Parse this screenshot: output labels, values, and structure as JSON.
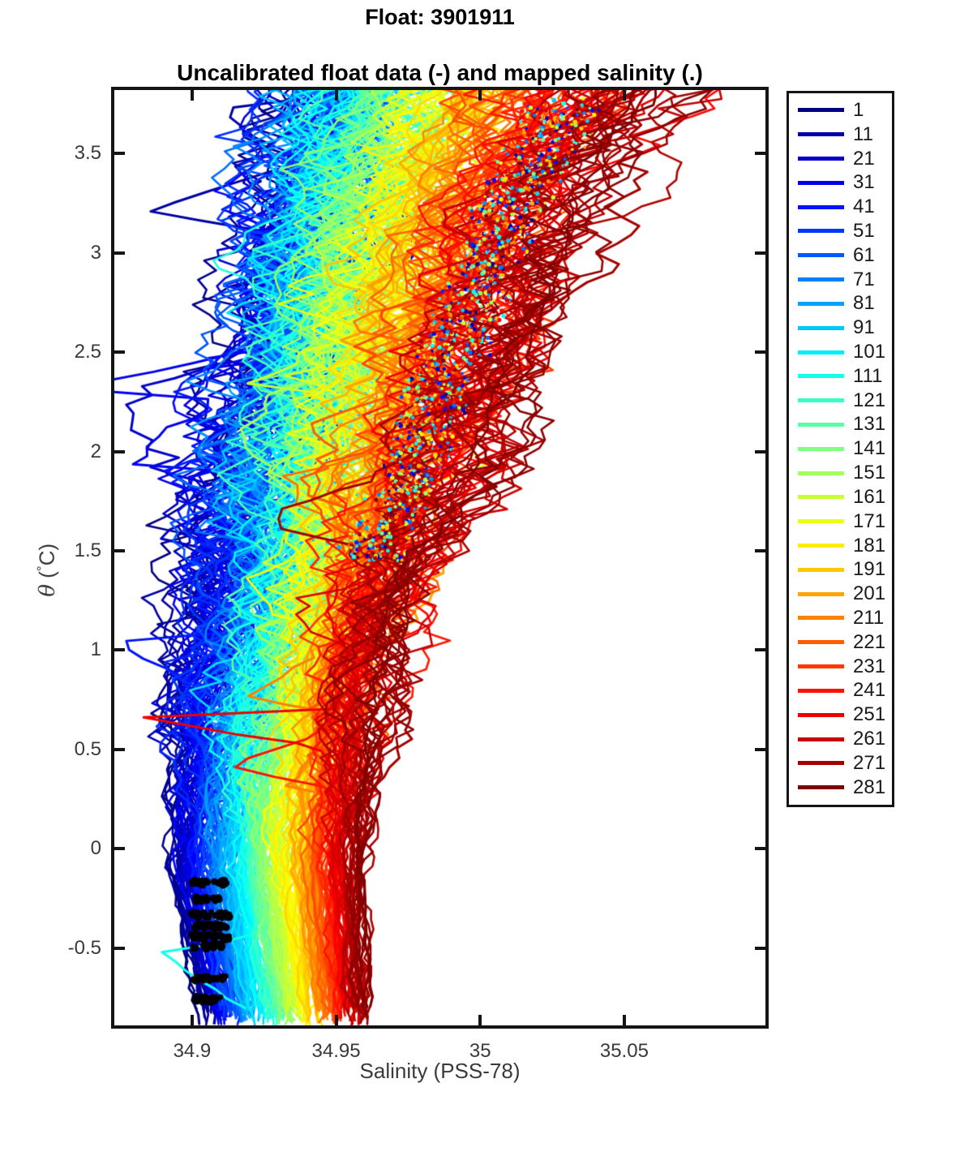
{
  "figure_title": "Float: 3901911",
  "chart_data": {
    "type": "line",
    "title": "Uncalibrated float data (-) and mapped salinity (.)",
    "xlabel": "Salinity (PSS-78)",
    "ylabel": "θ (°C)",
    "ylabel_parts": {
      "symbol": "θ",
      "open": " (",
      "degree": "°",
      "close": "C)"
    },
    "xlim": [
      34.873,
      35.099
    ],
    "ylim": [
      -0.89,
      3.82
    ],
    "grid": false,
    "legend_position": "outside-right",
    "xticks": {
      "values": [
        34.9,
        34.95,
        35.0,
        35.05
      ],
      "labels": [
        "34.9",
        "34.95",
        "35",
        "35.05"
      ]
    },
    "yticks": {
      "values": [
        -0.5,
        0,
        0.5,
        1,
        1.5,
        2,
        2.5,
        3,
        3.5
      ],
      "labels": [
        "-0.5",
        "0",
        "0.5",
        "1",
        "1.5",
        "2",
        "2.5",
        "3",
        "3.5"
      ]
    },
    "total_profiles": 281,
    "theta_levels": [
      -0.85,
      -0.45,
      -0.1,
      0.3,
      0.7,
      1.1,
      1.5,
      1.9,
      2.3,
      2.7,
      3.1,
      3.45,
      3.8
    ],
    "series": [
      {
        "name": "1",
        "color": "#000080",
        "salinity": [
          34.904,
          34.898,
          34.893,
          34.895,
          34.901,
          34.907,
          34.913,
          34.918,
          34.924,
          34.929,
          34.934,
          34.939,
          34.946
        ],
        "extra_points": [
          [
            0.15,
            34.886
          ]
        ]
      },
      {
        "name": "11",
        "color": "#0000A4",
        "salinity": [
          34.906,
          34.9002,
          34.8953,
          34.8973,
          34.9033,
          34.9093,
          34.9153,
          34.9185,
          34.9246,
          34.9291,
          34.9341,
          34.9391,
          34.9461
        ],
        "extra_points": [
          [
            3.2,
            34.893
          ],
          [
            3.72,
            34.902
          ]
        ]
      },
      {
        "name": "21",
        "color": "#0000C8",
        "salinity": [
          34.9081,
          34.9024,
          34.8976,
          34.8996,
          34.9055,
          34.9116,
          34.9176,
          34.9195,
          34.9256,
          34.9295,
          34.9345,
          34.9395,
          34.9466
        ],
        "extra_points": [
          [
            1.35,
            34.902
          ],
          [
            1.55,
            34.884
          ],
          [
            1.75,
            34.91
          ]
        ]
      },
      {
        "name": "31",
        "color": "#0000ED",
        "salinity": [
          34.9101,
          34.9045,
          34.9,
          34.902,
          34.9078,
          34.9139,
          34.92,
          34.9207,
          34.9269,
          34.93,
          34.9351,
          34.9402,
          34.9473
        ],
        "extra_points": [
          [
            1.9,
            34.8755
          ],
          [
            2.08,
            34.897
          ],
          [
            2.3,
            34.879
          ],
          [
            2.5,
            34.924
          ]
        ]
      },
      {
        "name": "41",
        "color": "#0012FF",
        "salinity": [
          34.9121,
          34.9067,
          34.9023,
          34.9043,
          34.91,
          34.9161,
          34.9223,
          34.9222,
          34.9284,
          34.9308,
          34.936,
          34.9412,
          34.9484
        ],
        "extra_points": [
          [
            0.62,
            34.892
          ],
          [
            1.05,
            34.8765
          ],
          [
            1.35,
            34.906
          ]
        ]
      },
      {
        "name": "51",
        "color": "#0037FF",
        "salinity": [
          34.9142,
          34.9089,
          34.9046,
          34.9066,
          34.9123,
          34.9184,
          34.9246,
          34.9238,
          34.9301,
          34.9318,
          34.9371,
          34.9424,
          34.9497
        ]
      },
      {
        "name": "61",
        "color": "#005BFF",
        "salinity": [
          34.9162,
          34.9111,
          34.9069,
          34.9089,
          34.9145,
          34.9207,
          34.9269,
          34.9257,
          34.9321,
          34.9331,
          34.9384,
          34.9439,
          34.9513
        ]
      },
      {
        "name": "71",
        "color": "#0080FF",
        "salinity": [
          34.9183,
          34.9133,
          34.9093,
          34.9113,
          34.9168,
          34.923,
          34.9293,
          34.9276,
          34.9341,
          34.9346,
          34.94,
          34.9456,
          34.9533
        ]
      },
      {
        "name": "81",
        "color": "#00A4FF",
        "salinity": [
          34.9203,
          34.9154,
          34.9116,
          34.9136,
          34.919,
          34.9253,
          34.9316,
          34.9298,
          34.9364,
          34.9363,
          34.9418,
          34.9477,
          34.9555
        ]
      },
      {
        "name": "91",
        "color": "#00C8FF",
        "salinity": [
          34.9223,
          34.9176,
          34.9139,
          34.9159,
          34.9213,
          34.9276,
          34.9339,
          34.932,
          34.9387,
          34.9382,
          34.9439,
          34.9499,
          34.958
        ]
      },
      {
        "name": "101",
        "color": "#00EDFF",
        "salinity": [
          34.9244,
          34.9198,
          34.9162,
          34.9182,
          34.9235,
          34.9299,
          34.9362,
          34.9344,
          34.9413,
          34.9404,
          34.9463,
          34.9525,
          34.9608
        ]
      },
      {
        "name": "111",
        "color": "#12FFED",
        "salinity": [
          34.9264,
          34.922,
          34.9185,
          34.9205,
          34.9258,
          34.9321,
          34.9385,
          34.937,
          34.9439,
          34.9427,
          34.9488,
          34.9554,
          34.9639
        ],
        "extra_points": [
          [
            -0.52,
            34.8885
          ]
        ]
      },
      {
        "name": "121",
        "color": "#37FFC8",
        "salinity": [
          34.9284,
          34.9241,
          34.9209,
          34.9229,
          34.928,
          34.9344,
          34.9409,
          34.9396,
          34.9467,
          34.9453,
          34.9516,
          34.9585,
          34.9673
        ]
      },
      {
        "name": "131",
        "color": "#5BFFA4",
        "salinity": [
          34.9305,
          34.9263,
          34.9232,
          34.9252,
          34.9303,
          34.9367,
          34.9432,
          34.9424,
          34.9496,
          34.9482,
          34.9547,
          34.9619,
          34.971
        ]
      },
      {
        "name": "141",
        "color": "#80FF80",
        "salinity": [
          34.9325,
          34.9285,
          34.9255,
          34.9275,
          34.9325,
          34.939,
          34.9455,
          34.9452,
          34.9526,
          34.9513,
          34.958,
          34.9655,
          34.975
        ]
      },
      {
        "name": "151",
        "color": "#A4FF5B",
        "salinity": [
          34.9345,
          34.9307,
          34.9278,
          34.9298,
          34.9348,
          34.9413,
          34.9478,
          34.9482,
          34.9558,
          34.9545,
          34.9616,
          34.9694,
          34.9793
        ]
      },
      {
        "name": "161",
        "color": "#C8FF37",
        "salinity": [
          34.9366,
          34.9329,
          34.9301,
          34.9321,
          34.937,
          34.9436,
          34.9501,
          34.9513,
          34.959,
          34.9581,
          34.9653,
          34.9736,
          34.9839
        ],
        "extra_points": [
          [
            2.35,
            34.9215
          ]
        ]
      },
      {
        "name": "171",
        "color": "#EDFF12",
        "salinity": [
          34.9386,
          34.935,
          34.9325,
          34.9345,
          34.9393,
          34.9459,
          34.9525,
          34.9544,
          34.9623,
          34.9618,
          34.9694,
          34.9781,
          34.9888
        ]
      },
      {
        "name": "181",
        "color": "#FFED00",
        "salinity": [
          34.9407,
          34.9372,
          34.9348,
          34.9368,
          34.9415,
          34.9481,
          34.9548,
          34.9577,
          34.9658,
          34.9658,
          34.9737,
          34.9828,
          34.9939
        ]
      },
      {
        "name": "191",
        "color": "#FFC800",
        "salinity": [
          34.9427,
          34.9394,
          34.9371,
          34.9391,
          34.9438,
          34.9504,
          34.9571,
          34.9611,
          34.9693,
          34.97,
          34.9782,
          34.9878,
          34.9994
        ]
      },
      {
        "name": "201",
        "color": "#FFA400",
        "salinity": [
          34.9447,
          34.9416,
          34.9394,
          34.9414,
          34.946,
          34.9527,
          34.9594,
          34.9645,
          34.9729,
          34.9744,
          34.983,
          34.9931,
          35.0052
        ]
      },
      {
        "name": "211",
        "color": "#FF8000",
        "salinity": [
          34.9468,
          34.9438,
          34.9417,
          34.9437,
          34.9483,
          34.955,
          34.9617,
          34.968,
          34.9766,
          34.9791,
          34.988,
          34.9986,
          35.0113
        ],
        "extra_points": [
          [
            0.3,
            34.9275
          ],
          [
            0.75,
            34.9235
          ]
        ]
      },
      {
        "name": "221",
        "color": "#FF5B00",
        "salinity": [
          34.9488,
          34.9459,
          34.9441,
          34.9461,
          34.9505,
          34.9573,
          34.9641,
          34.9716,
          34.9804,
          34.9839,
          34.9933,
          35.0044,
          35.0176
        ]
      },
      {
        "name": "231",
        "color": "#FF3700",
        "salinity": [
          34.9508,
          34.9481,
          34.9464,
          34.9484,
          34.9528,
          34.9596,
          34.9664,
          34.9753,
          34.9843,
          34.989,
          34.9988,
          35.0105,
          35.0243
        ]
      },
      {
        "name": "241",
        "color": "#FF1200",
        "salinity": [
          34.9529,
          34.9503,
          34.9487,
          34.9507,
          34.955,
          34.9619,
          34.9687,
          34.9791,
          34.9883,
          34.9944,
          35.0045,
          35.0169,
          35.0312
        ],
        "extra_points": [
          [
            0.42,
            34.9155
          ],
          [
            0.55,
            34.945
          ]
        ]
      },
      {
        "name": "251",
        "color": "#ED0000",
        "salinity": [
          34.9549,
          34.9525,
          34.951,
          34.953,
          34.9573,
          34.9641,
          34.971,
          34.983,
          34.9923,
          35.0,
          35.0105,
          35.0235,
          35.0385
        ],
        "extra_points": [
          [
            0.52,
            34.9445
          ],
          [
            0.68,
            34.8795
          ],
          [
            0.82,
            34.96
          ]
        ]
      },
      {
        "name": "261",
        "color": "#C80000",
        "salinity": [
          34.9569,
          34.9546,
          34.9533,
          34.9553,
          34.9595,
          34.9664,
          34.9733,
          34.9869,
          34.9965,
          35.0057,
          35.0168,
          35.0304,
          35.046
        ]
      },
      {
        "name": "271",
        "color": "#A40000",
        "salinity": [
          34.959,
          34.9568,
          34.9557,
          34.9577,
          34.9618,
          34.9687,
          34.9757,
          34.9909,
          35.0007,
          35.0117,
          35.0233,
          35.0376,
          35.0538
        ],
        "extra_points": [
          [
            1.62,
            34.945
          ]
        ]
      },
      {
        "name": "281",
        "color": "#800000",
        "salinity": [
          34.961,
          34.959,
          34.958,
          34.96,
          34.964,
          34.971,
          34.978,
          34.995,
          35.005,
          35.018,
          35.03,
          35.045,
          35.062
        ]
      }
    ],
    "mapped_salinity_marker_color": "#000000",
    "mapped_salinity_clusters": [
      {
        "theta": -0.17,
        "s_min": 34.9,
        "s_max": 34.912
      },
      {
        "theta": -0.255,
        "s_min": 34.901,
        "s_max": 34.91
      },
      {
        "theta": -0.335,
        "s_min": 34.899,
        "s_max": 34.913
      },
      {
        "theta": -0.39,
        "s_min": 34.9,
        "s_max": 34.912
      },
      {
        "theta": -0.445,
        "s_min": 34.899,
        "s_max": 34.913
      },
      {
        "theta": -0.49,
        "s_min": 34.9,
        "s_max": 34.911
      },
      {
        "theta": -0.655,
        "s_min": 34.899,
        "s_max": 34.912
      },
      {
        "theta": -0.76,
        "s_min": 34.901,
        "s_max": 34.91
      }
    ]
  }
}
